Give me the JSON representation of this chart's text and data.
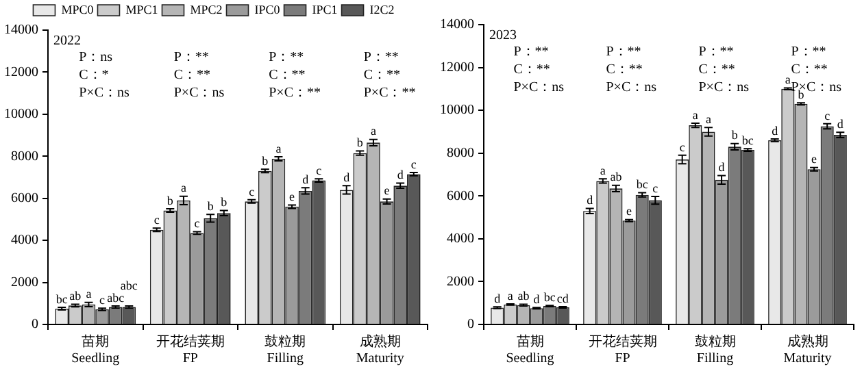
{
  "chart_data": [
    {
      "type": "bar",
      "categories": [
        "苗期\nSeedling",
        "开花结荚期\nFP",
        "鼓粒期\nFilling",
        "成熟期\nMaturity"
      ],
      "ylim": [
        0,
        14000
      ],
      "yticks": [
        0,
        2000,
        4000,
        6000,
        8000,
        10000,
        12000,
        14000
      ],
      "grid": false,
      "legend": "top",
      "series": [
        {
          "name": "MPC0",
          "color": "#e8e8e8",
          "values": [
            750,
            4500,
            5850,
            6400
          ],
          "errors": [
            60,
            80,
            80,
            200
          ],
          "value_labels": [
            "bc",
            "c",
            "c",
            "d"
          ]
        },
        {
          "name": "MPC1",
          "color": "#cbcbcb",
          "values": [
            900,
            5420,
            7300,
            8150
          ],
          "errors": [
            60,
            80,
            80,
            100
          ],
          "value_labels": [
            "ab",
            "b",
            "b",
            "b"
          ]
        },
        {
          "name": "MPC2",
          "color": "#b5b5b5",
          "values": [
            950,
            5900,
            7880,
            8650
          ],
          "errors": [
            100,
            200,
            100,
            150
          ],
          "value_labels": [
            "a",
            "a",
            "a",
            "a"
          ]
        },
        {
          "name": "IPC0",
          "color": "#9b9b9b",
          "values": [
            720,
            4350,
            5600,
            5850
          ],
          "errors": [
            50,
            60,
            80,
            120
          ],
          "value_labels": [
            "c",
            "c",
            "e",
            "e"
          ]
        },
        {
          "name": "IPC1",
          "color": "#7b7b7b",
          "values": [
            830,
            5050,
            6350,
            6600
          ],
          "errors": [
            50,
            180,
            150,
            120
          ],
          "value_labels": [
            "abc",
            "b",
            "d",
            "d"
          ]
        },
        {
          "name": "I2C2",
          "color": "#585858",
          "values": [
            830,
            5300,
            6850,
            7150
          ],
          "errors": [
            50,
            120,
            80,
            80
          ],
          "value_labels": [
            "abc",
            "b",
            "c",
            "c"
          ]
        }
      ],
      "annotations": [
        "2022",
        "P：ns\nC：*\nP×C：ns",
        "P：**\nC：**\nP×C：ns",
        "P：**\nC：**\nP×C：**",
        "P：**\nC：**\nP×C：**"
      ]
    },
    {
      "type": "bar",
      "categories": [
        "苗期\nSeedling",
        "开花结荚期\nFP",
        "鼓粒期\nFilling",
        "成熟期\nMaturity"
      ],
      "ylim": [
        0,
        14000
      ],
      "yticks": [
        0,
        2000,
        4000,
        6000,
        8000,
        10000,
        12000,
        14000
      ],
      "grid": false,
      "legend": false,
      "series": [
        {
          "color": "#e8e8e8",
          "values": [
            780,
            5300,
            7700,
            8600
          ],
          "errors": [
            40,
            120,
            200,
            60
          ],
          "value_labels": [
            "d",
            "d",
            "c",
            "d"
          ]
        },
        {
          "color": "#cbcbcb",
          "values": [
            930,
            6700,
            9300,
            11000
          ],
          "errors": [
            30,
            100,
            100,
            40
          ],
          "value_labels": [
            "a",
            "a",
            "a",
            "a"
          ]
        },
        {
          "color": "#b5b5b5",
          "values": [
            900,
            6350,
            9000,
            10300
          ],
          "errors": [
            40,
            150,
            200,
            50
          ],
          "value_labels": [
            "ab",
            "ab",
            "a",
            "b"
          ]
        },
        {
          "color": "#9b9b9b",
          "values": [
            760,
            4850,
            6750,
            7250
          ],
          "errors": [
            30,
            50,
            200,
            80
          ],
          "value_labels": [
            "d",
            "e",
            "d",
            "e"
          ]
        },
        {
          "color": "#7b7b7b",
          "values": [
            860,
            6050,
            8300,
            9250
          ],
          "errors": [
            30,
            100,
            150,
            120
          ],
          "value_labels": [
            "bc",
            "bc",
            "b",
            "c"
          ]
        },
        {
          "color": "#585858",
          "values": [
            800,
            5800,
            8150,
            8850
          ],
          "errors": [
            30,
            180,
            60,
            120
          ],
          "value_labels": [
            "cd",
            "c",
            "bc",
            "d"
          ]
        }
      ],
      "annotations": [
        "2023",
        "P：**\nC：**\nP×C：ns",
        "P：**\nC：**\nP×C：ns",
        "P：**\nC：**\nP×C：ns",
        "P：**\nC：**\nP×C：ns"
      ]
    }
  ]
}
